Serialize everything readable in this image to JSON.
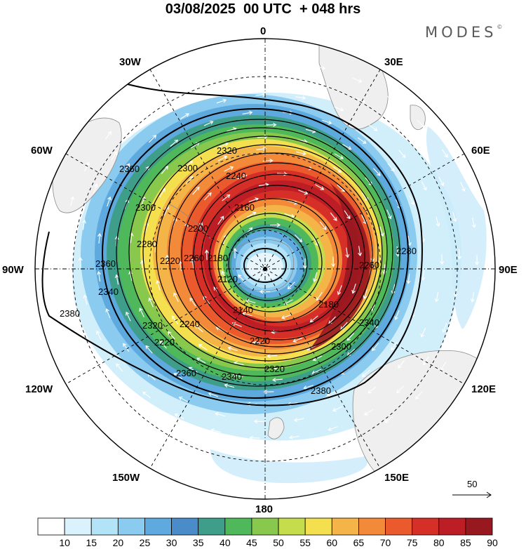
{
  "title": "03/08/2025  00 UTC  + 048 hrs",
  "brand": "MODES",
  "brand_mark": "©",
  "longitude_labels": [
    "0",
    "30E",
    "60E",
    "90E",
    "120E",
    "150E",
    "180",
    "150W",
    "120W",
    "90W",
    "60W",
    "30W"
  ],
  "contour_labels": [
    "2120",
    "2140",
    "2160",
    "2180",
    "2200",
    "2220",
    "2240",
    "2260",
    "2280",
    "2300",
    "2320",
    "2340",
    "2360",
    "2380"
  ],
  "reference_vector": {
    "label": "50",
    "magnitude": 50
  },
  "colorbar": {
    "labels": [
      "10",
      "15",
      "20",
      "25",
      "30",
      "35",
      "40",
      "45",
      "50",
      "55",
      "60",
      "65",
      "70",
      "75",
      "80",
      "85",
      "90"
    ],
    "colors": [
      "#ffffff",
      "#d9f2fc",
      "#b3e3f7",
      "#8bcbef",
      "#5ea9de",
      "#4a8cc9",
      "#3f9e8a",
      "#4fb85a",
      "#88c94d",
      "#c5dc4c",
      "#f4df4f",
      "#f5b447",
      "#f28a3a",
      "#ea5a2c",
      "#d62f27",
      "#bd1d24",
      "#981820"
    ]
  },
  "colors": {
    "land": "#efefef",
    "coast": "#8a8a8a",
    "vector": "#ffffff",
    "contour": "#000000"
  }
}
